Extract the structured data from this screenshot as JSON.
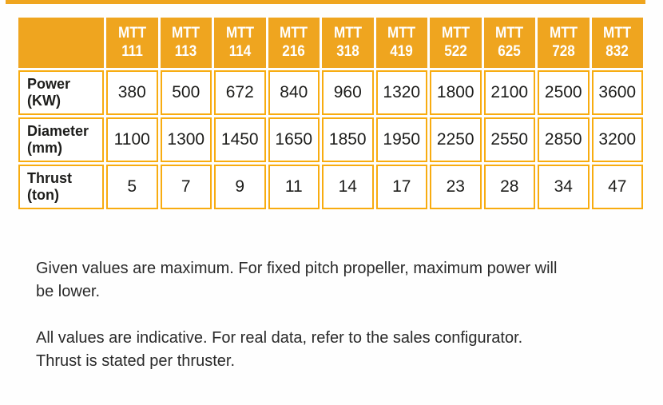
{
  "colors": {
    "orange": "#EFA51F",
    "border_orange": "#F8AC10",
    "header_text": "#FFFFFF",
    "body_text": "#1D1D1B",
    "note_text": "#2A2A2A"
  },
  "table": {
    "column_prefix": "MTT",
    "models": [
      "111",
      "113",
      "114",
      "216",
      "318",
      "419",
      "522",
      "625",
      "728",
      "832"
    ],
    "rows": [
      {
        "label_line1": "Power",
        "label_line2": "(KW)",
        "values": [
          "380",
          "500",
          "672",
          "840",
          "960",
          "1320",
          "1800",
          "2100",
          "2500",
          "3600"
        ]
      },
      {
        "label_line1": "Diameter",
        "label_line2": "(mm)",
        "values": [
          "1100",
          "1300",
          "1450",
          "1650",
          "1850",
          "1950",
          "2250",
          "2550",
          "2850",
          "3200"
        ]
      },
      {
        "label_line1": "Thrust",
        "label_line2": "(ton)",
        "values": [
          "5",
          "7",
          "9",
          "11",
          "14",
          "17",
          "23",
          "28",
          "34",
          "47"
        ]
      }
    ]
  },
  "notes": [
    {
      "lines": [
        "Given values are maximum. For fixed pitch propeller, maximum power will",
        "be lower."
      ]
    },
    {
      "lines": [
        "All values are indicative. For real data, refer to the sales configurator.",
        "Thrust is stated per thruster."
      ]
    }
  ]
}
